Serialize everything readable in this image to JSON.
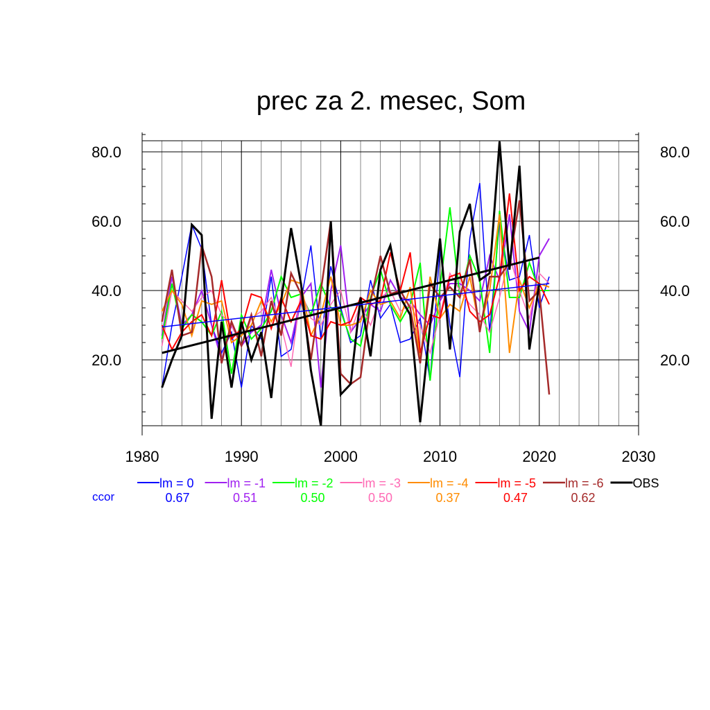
{
  "chart_data": {
    "type": "line",
    "title": "prec za 2. mesec, Som",
    "xlabel": "",
    "ylabel": "",
    "xlim": [
      1980,
      2030
    ],
    "ylim": [
      0,
      85
    ],
    "x_ticks": [
      1980,
      1990,
      2000,
      2010,
      2020,
      2030
    ],
    "x_tick_labels": [
      "1980",
      "1990",
      "2000",
      "2010",
      "2020",
      "2030"
    ],
    "y_ticks": [
      20,
      40,
      60,
      80
    ],
    "y_tick_labels": [
      "20.0",
      "40.0",
      "60.0",
      "80.0"
    ],
    "grid": true,
    "legend_position": "bottom",
    "ccor_label": "ccor",
    "ccor_color": "#0000ff",
    "x": [
      1982,
      1983,
      1984,
      1985,
      1986,
      1987,
      1988,
      1989,
      1990,
      1991,
      1992,
      1993,
      1994,
      1995,
      1996,
      1997,
      1998,
      1999,
      2000,
      2001,
      2002,
      2003,
      2004,
      2005,
      2006,
      2007,
      2008,
      2009,
      2010,
      2011,
      2012,
      2013,
      2014,
      2015,
      2016,
      2017,
      2018,
      2019,
      2020,
      2021
    ],
    "series": [
      {
        "name": "lm = 0",
        "color": "#0000ff",
        "width": 1.5,
        "ccor": "0.67",
        "values": [
          12,
          30,
          44,
          59,
          52,
          30,
          22,
          28,
          12,
          30,
          26,
          44,
          21,
          23,
          37,
          53,
          26,
          47,
          35,
          25,
          27,
          43,
          32,
          36,
          25,
          26,
          32,
          14,
          52,
          30,
          15,
          55,
          71,
          28,
          60,
          43,
          44,
          56,
          35,
          44
        ]
      },
      {
        "name": "lm = -1",
        "color": "#a020f0",
        "width": 2,
        "ccor": "0.51",
        "values": [
          27,
          44,
          30,
          33,
          40,
          30,
          20,
          30,
          24,
          28,
          30,
          46,
          33,
          25,
          38,
          42,
          12,
          40,
          53,
          28,
          32,
          36,
          34,
          43,
          38,
          37,
          33,
          30,
          37,
          42,
          42,
          40,
          37,
          50,
          43,
          62,
          34,
          28,
          50,
          55
        ]
      },
      {
        "name": "lm = -2",
        "color": "#00ff00",
        "width": 2,
        "ccor": "0.50",
        "values": [
          26,
          42,
          29,
          33,
          31,
          27,
          34,
          16,
          33,
          26,
          29,
          34,
          44,
          38,
          39,
          33,
          42,
          35,
          34,
          26,
          24,
          38,
          46,
          36,
          31,
          36,
          48,
          14,
          41,
          64,
          38,
          50,
          43,
          22,
          63,
          38,
          38,
          48,
          40,
          40
        ]
      },
      {
        "name": "lm = -3",
        "color": "#ff69b4",
        "width": 1.5,
        "ccor": "0.50",
        "values": [
          24,
          40,
          37,
          34,
          38,
          40,
          33,
          30,
          24,
          32,
          34,
          38,
          30,
          18,
          40,
          32,
          30,
          36,
          40,
          28,
          36,
          30,
          38,
          40,
          34,
          36,
          30,
          22,
          33,
          45,
          40,
          36,
          33,
          28,
          38,
          50,
          40,
          32,
          45,
          42
        ]
      },
      {
        "name": "lm = -4",
        "color": "#ff8c00",
        "width": 2,
        "ccor": "0.37",
        "values": [
          34,
          40,
          36,
          27,
          37,
          36,
          37,
          25,
          27,
          30,
          37,
          31,
          36,
          43,
          42,
          27,
          33,
          44,
          30,
          30,
          31,
          40,
          36,
          37,
          32,
          41,
          20,
          44,
          32,
          36,
          34,
          44,
          29,
          40,
          62,
          22,
          43,
          35,
          42,
          41
        ]
      },
      {
        "name": "lm = -5",
        "color": "#ff0000",
        "width": 2,
        "ccor": "0.47",
        "values": [
          30,
          23,
          28,
          31,
          33,
          27,
          43,
          26,
          29,
          39,
          38,
          29,
          38,
          31,
          37,
          27,
          26,
          31,
          30,
          31,
          38,
          36,
          37,
          51,
          40,
          51,
          22,
          33,
          32,
          44,
          45,
          34,
          31,
          33,
          44,
          68,
          40,
          44,
          42,
          36
        ]
      },
      {
        "name": "lm = -6",
        "color": "#a52a2a",
        "width": 2.5,
        "ccor": "0.62",
        "values": [
          31,
          46,
          27,
          28,
          53,
          44,
          19,
          31,
          24,
          33,
          21,
          37,
          27,
          45,
          39,
          20,
          40,
          60,
          16,
          13,
          15,
          37,
          50,
          39,
          40,
          35,
          19,
          42,
          38,
          41,
          38,
          49,
          28,
          44,
          44,
          48,
          66,
          37,
          40,
          10
        ]
      },
      {
        "name": "OBS",
        "color": "#000000",
        "width": 3,
        "ccor": "",
        "values": [
          12,
          20,
          27,
          59,
          56,
          3,
          31,
          12,
          31,
          20,
          28,
          9,
          37,
          58,
          42,
          17,
          1,
          60,
          10,
          13,
          38,
          21,
          46,
          53,
          38,
          33,
          2,
          30,
          55,
          23,
          57,
          65,
          43,
          45,
          83,
          46,
          76,
          23,
          42,
          null
        ]
      }
    ],
    "trendlines": [
      {
        "color": "#0000ff",
        "width": 1.5,
        "x": [
          1982,
          2021
        ],
        "y": [
          29.5,
          42
        ]
      },
      {
        "color": "#000000",
        "width": 3,
        "x": [
          1982,
          2020
        ],
        "y": [
          22,
          49.5
        ]
      }
    ]
  }
}
